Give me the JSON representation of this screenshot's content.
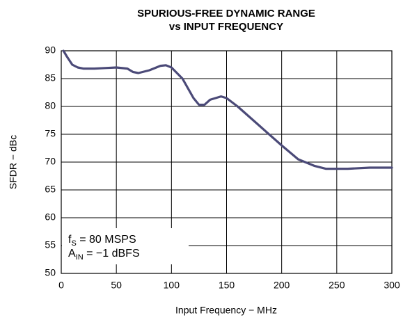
{
  "chart_data": {
    "type": "line",
    "title": [
      "SPURIOUS-FREE DYNAMIC RANGE",
      "vs INPUT FREQUENCY"
    ],
    "x_label": "Input Frequency − MHz",
    "y_label": "SFDR − dBc",
    "annotations": [
      {
        "text": "f",
        "sub": "S",
        "rest": " = 80 MSPS"
      },
      {
        "text": "A",
        "sub": "IN",
        "rest": " = −1 dBFS"
      }
    ],
    "series": [
      {
        "name": "SFDR",
        "color": "#4b4a78",
        "x": [
          2,
          5,
          10,
          15,
          20,
          30,
          40,
          50,
          60,
          65,
          70,
          80,
          90,
          95,
          100,
          110,
          120,
          125,
          130,
          135,
          145,
          150,
          160,
          180,
          200,
          215,
          230,
          240,
          260,
          280,
          300
        ],
        "values": [
          90,
          89,
          87.5,
          87,
          86.8,
          86.8,
          86.9,
          87,
          86.8,
          86.2,
          86,
          86.5,
          87.3,
          87.4,
          87,
          85,
          81.5,
          80.3,
          80.3,
          81.2,
          81.8,
          81.5,
          80,
          76.5,
          73,
          70.5,
          69.3,
          68.8,
          68.8,
          69,
          69
        ]
      }
    ],
    "xlim": [
      0,
      300
    ],
    "xticks": [
      0,
      50,
      100,
      150,
      200,
      250,
      300
    ],
    "ylim": [
      50,
      90
    ],
    "yticks": [
      50,
      55,
      60,
      65,
      70,
      75,
      80,
      85,
      90
    ],
    "grid": true
  }
}
